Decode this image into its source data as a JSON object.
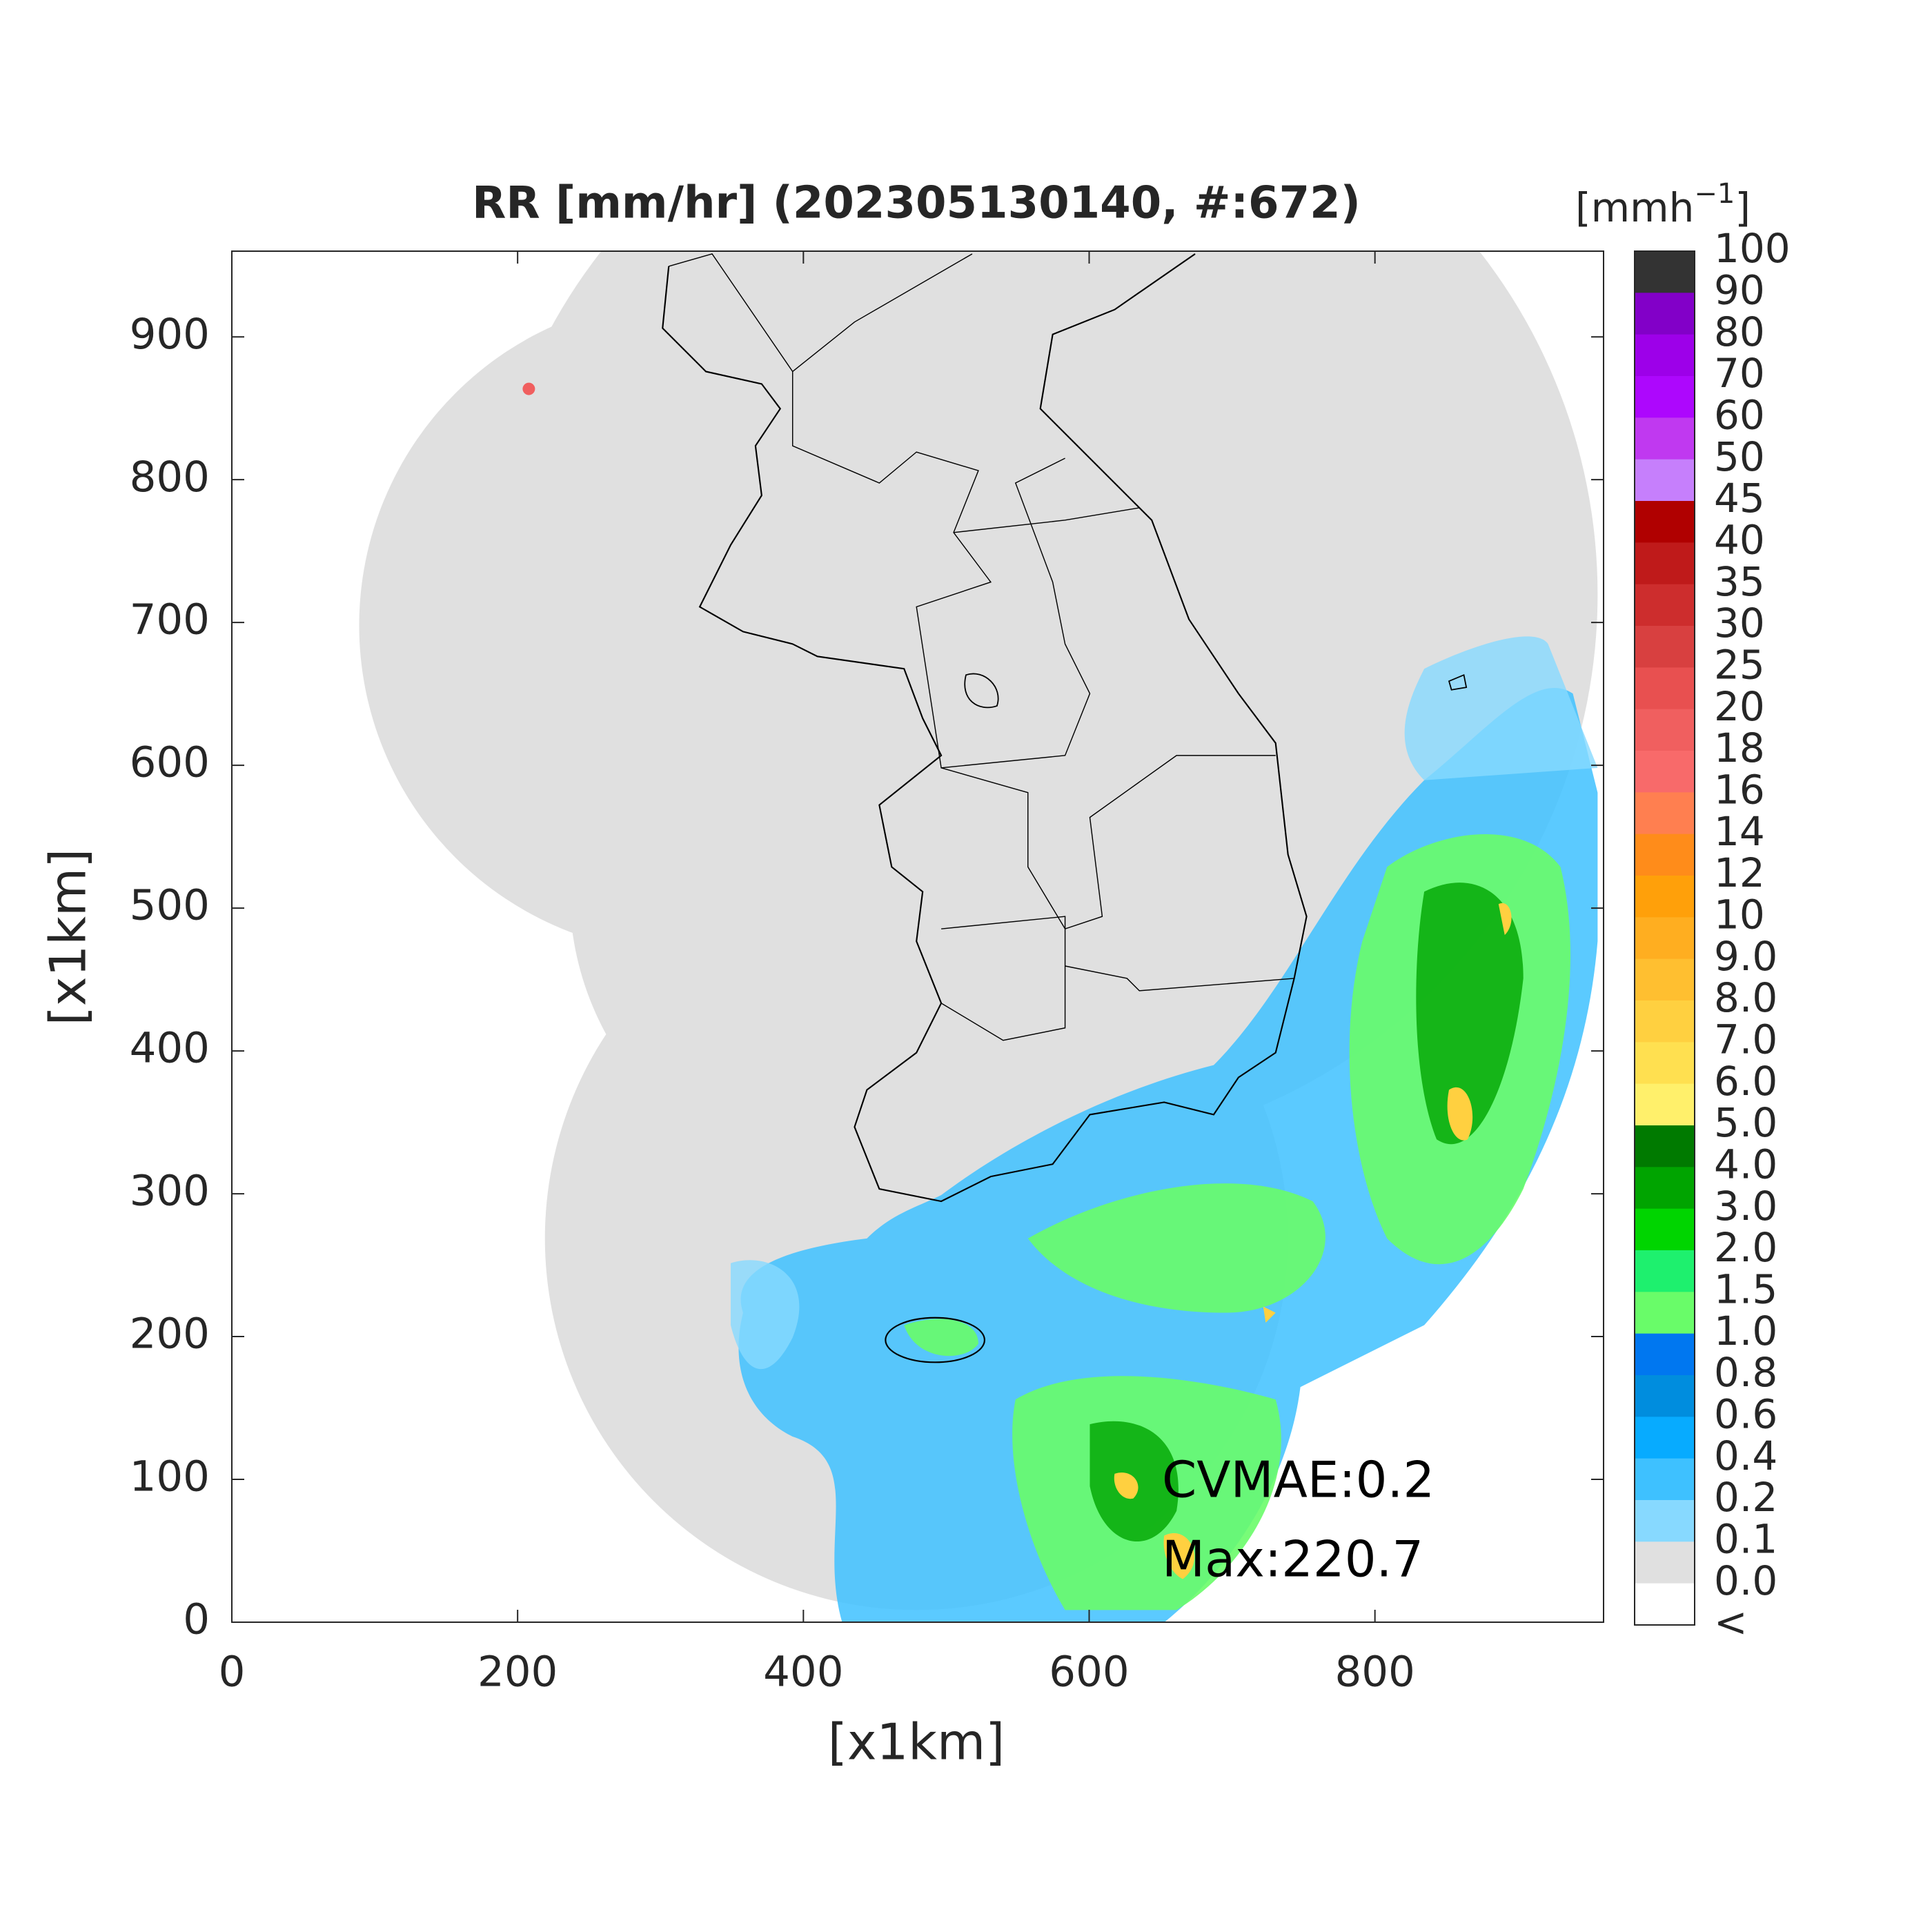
{
  "chart_data": {
    "type": "map",
    "title": "RR [mm/hr] (202305130140, #:672)",
    "x_label": "[x1km]",
    "y_label": "[x1km]",
    "xlim": [
      0,
      960
    ],
    "ylim": [
      0,
      960
    ],
    "xticks": [
      0,
      200,
      400,
      600,
      800
    ],
    "yticks": [
      0,
      100,
      200,
      300,
      400,
      500,
      600,
      700,
      800,
      900
    ],
    "annotations": [
      "CVMAE:0.2",
      "Max:220.7"
    ],
    "colorbar": {
      "unit": {
        "base": "[mmh",
        "sup": "−1",
        "end": "]"
      },
      "labels": [
        "100",
        "90",
        "80",
        "70",
        "60",
        "50",
        "45",
        "40",
        "35",
        "30",
        "25",
        "20",
        "18",
        "16",
        "14",
        "12",
        "10",
        "9.0",
        "8.0",
        "7.0",
        "6.0",
        "5.0",
        "4.0",
        "3.0",
        "2.0",
        "1.5",
        "1.0",
        "0.8",
        "0.6",
        "0.4",
        "0.2",
        "0.1",
        "0.0",
        "<"
      ],
      "colors": [
        "#333333",
        "#8200c8",
        "#9d00e9",
        "#ad07fd",
        "#c039f0",
        "#c67ffc",
        "#b00000",
        "#bf1a1a",
        "#cd2d2d",
        "#d84040",
        "#e85050",
        "#f05f5f",
        "#f86a6a",
        "#ff7f50",
        "#ff8c1a",
        "#ffa00a",
        "#ffae20",
        "#ffbf30",
        "#ffd040",
        "#ffe050",
        "#fff06b",
        "#007a00",
        "#00a400",
        "#00d500",
        "#1ef06e",
        "#69fc69",
        "#0077f0",
        "#008dde",
        "#07abff",
        "#3ec1ff",
        "#87d9ff",
        "#e0e0e0",
        "#ffffff"
      ]
    }
  }
}
